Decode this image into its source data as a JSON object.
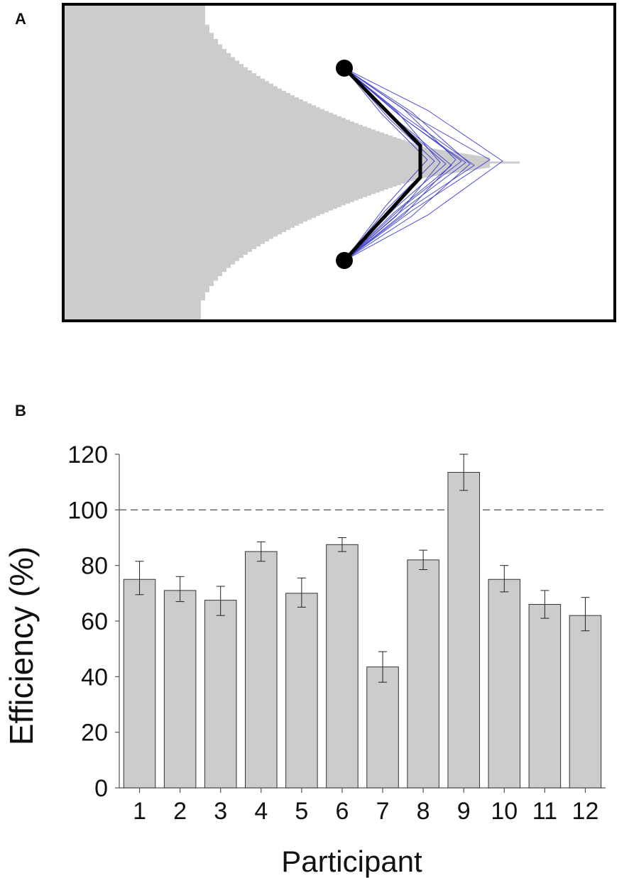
{
  "panel_labels": {
    "a": "A",
    "b": "B"
  },
  "colors": {
    "shade": "#cccccc",
    "path": "#000000",
    "trajectories": "#3a3acc",
    "bar_fill": "#cccccc",
    "bar_stroke": "#333333",
    "reference_line": "#666666"
  },
  "chart_data": [
    {
      "type": "diagram",
      "panel": "A",
      "markers": [
        "start",
        "end"
      ],
      "trajectory_count": 12
    },
    {
      "type": "bar",
      "panel": "B",
      "categories": [
        "1",
        "2",
        "3",
        "4",
        "5",
        "6",
        "7",
        "8",
        "9",
        "10",
        "11",
        "12"
      ],
      "values": [
        75,
        71,
        67.5,
        85,
        70,
        87.5,
        43.5,
        82,
        113.5,
        75,
        66,
        62
      ],
      "error_low": [
        69.5,
        67,
        62,
        81.5,
        65,
        85,
        38,
        78.5,
        107,
        70.5,
        61,
        56.5
      ],
      "error_high": [
        81.5,
        76,
        72.5,
        88.5,
        75.5,
        90,
        49,
        85.5,
        120,
        80,
        71,
        68.5
      ],
      "reference_line": 100,
      "ylim": [
        0,
        120
      ],
      "yticks": [
        0,
        20,
        40,
        60,
        80,
        100,
        120
      ],
      "xlabel": "Participant",
      "ylabel": "Efficiency (%)",
      "grid": false
    }
  ]
}
